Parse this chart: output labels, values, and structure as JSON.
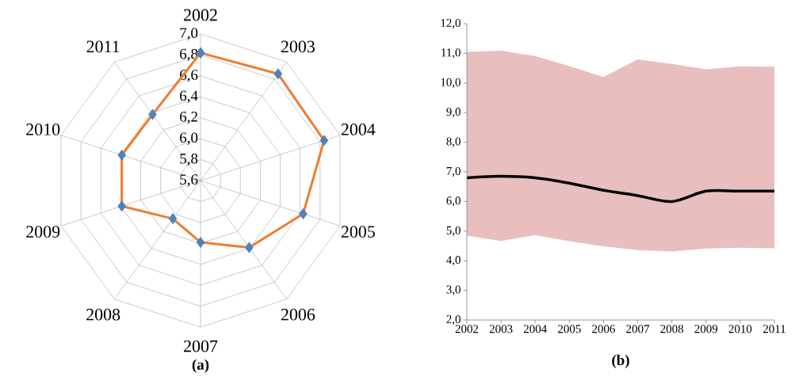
{
  "chart_data": [
    {
      "type": "radar",
      "title": "(a)",
      "categories": [
        "2002",
        "2003",
        "2004",
        "2005",
        "2006",
        "2007",
        "2008",
        "2009",
        "2010",
        "2011"
      ],
      "series": [
        {
          "color": "#ed7d31",
          "values": [
            6.82,
            6.86,
            6.84,
            6.63,
            6.39,
            6.19,
            6.05,
            6.39,
            6.39,
            6.38
          ]
        }
      ],
      "ylim": [
        5.6,
        7.0
      ],
      "yticks": [
        {
          "value": 5.6,
          "label": "5,6"
        },
        {
          "value": 5.8,
          "label": "5,8"
        },
        {
          "value": 6.0,
          "label": "6,0"
        },
        {
          "value": 6.2,
          "label": "6,2"
        },
        {
          "value": 6.4,
          "label": "6,4"
        },
        {
          "value": 6.6,
          "label": "6,6"
        },
        {
          "value": 6.8,
          "label": "6,8"
        },
        {
          "value": 7.0,
          "label": "7,0"
        }
      ],
      "grid": true,
      "marker": "diamond"
    },
    {
      "type": "line",
      "title": "(b)",
      "categories": [
        "2002",
        "2003",
        "2004",
        "2005",
        "2006",
        "2007",
        "2008",
        "2009",
        "2010",
        "2011"
      ],
      "series": [
        {
          "color": "#000000",
          "values": [
            6.8,
            6.85,
            6.8,
            6.62,
            6.38,
            6.2,
            6.0,
            6.35,
            6.35,
            6.35
          ],
          "lower": [
            4.85,
            4.67,
            4.87,
            4.66,
            4.49,
            4.36,
            4.31,
            4.41,
            4.44,
            4.42
          ],
          "upper": [
            11.05,
            11.09,
            10.91,
            10.57,
            10.2,
            10.8,
            10.64,
            10.46,
            10.56,
            10.55
          ]
        }
      ],
      "ylim": [
        2,
        12
      ],
      "yticks": [
        {
          "value": 2,
          "label": "2,0"
        },
        {
          "value": 3,
          "label": "3,0"
        },
        {
          "value": 4,
          "label": "4,0"
        },
        {
          "value": 5,
          "label": "5,0"
        },
        {
          "value": 6,
          "label": "6,0"
        },
        {
          "value": 7,
          "label": "7,0"
        },
        {
          "value": 8,
          "label": "8,0"
        },
        {
          "value": 9,
          "label": "9,0"
        },
        {
          "value": 10,
          "label": "10,0"
        },
        {
          "value": 11,
          "label": "11,0"
        },
        {
          "value": 12,
          "label": "12,0"
        }
      ]
    }
  ]
}
